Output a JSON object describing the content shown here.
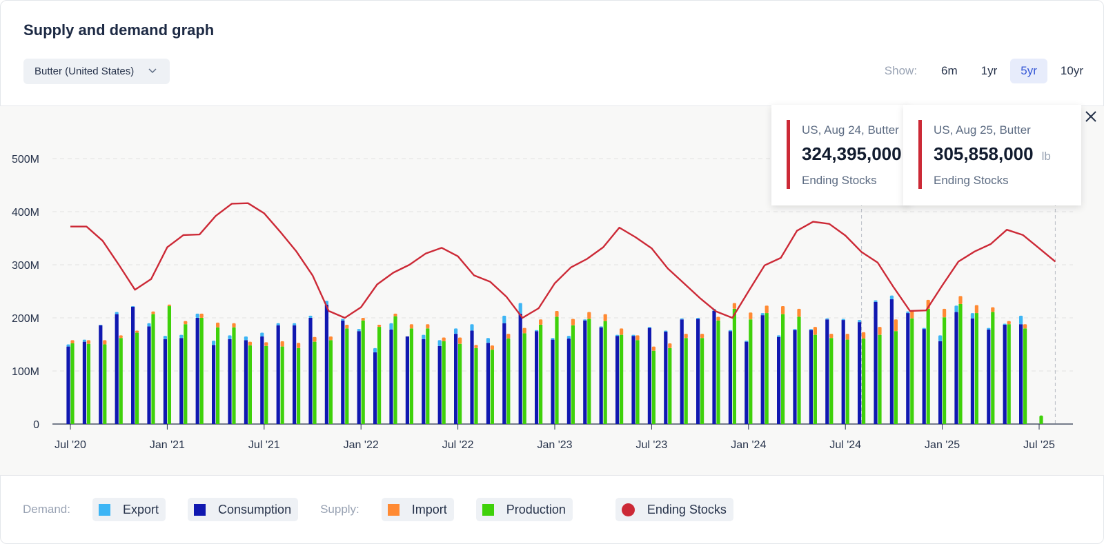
{
  "header": {
    "title": "Supply and demand graph",
    "dropdown_label": "Butter (United States)",
    "show_label": "Show:",
    "ranges": [
      "6m",
      "1yr",
      "5yr",
      "10yr"
    ],
    "active_range": "5yr"
  },
  "tooltips": [
    {
      "head": "US, Aug 24, Butter",
      "value": "324,395,000",
      "unit": "",
      "sub": "Ending Stocks"
    },
    {
      "head": "US, Aug 25, Butter",
      "value": "305,858,000",
      "unit": "lb",
      "sub": "Ending Stocks"
    }
  ],
  "legend": {
    "demand_label": "Demand:",
    "supply_label": "Supply:",
    "items": [
      {
        "name": "Export",
        "color": "#3db5f5"
      },
      {
        "name": "Consumption",
        "color": "#1018b0"
      },
      {
        "name": "Import",
        "color": "#ff8a33"
      },
      {
        "name": "Production",
        "color": "#3fd10a"
      },
      {
        "name": "Ending Stocks",
        "color": "#cc2936"
      }
    ]
  },
  "colors": {
    "export": "#3db5f5",
    "consumption": "#1018b0",
    "import": "#ff8a33",
    "production": "#3fd10a",
    "ending_stocks": "#cc2936"
  },
  "chart_data": {
    "type": "bar",
    "x_tick_labels": [
      "Jul '20",
      "Jan '21",
      "Jul '21",
      "Jan '22",
      "Jul '22",
      "Jan '23",
      "Jul '23",
      "Jan '24",
      "Jul '24",
      "Jan '25",
      "Jul '25"
    ],
    "y_tick_labels": [
      "0",
      "100M",
      "200M",
      "300M",
      "400M",
      "500M"
    ],
    "ylim": [
      0,
      500000000
    ],
    "unit": "lb",
    "months": [
      "Jul '20",
      "Aug '20",
      "Sep '20",
      "Oct '20",
      "Nov '20",
      "Dec '20",
      "Jan '21",
      "Feb '21",
      "Mar '21",
      "Apr '21",
      "May '21",
      "Jun '21",
      "Jul '21",
      "Aug '21",
      "Sep '21",
      "Oct '21",
      "Nov '21",
      "Dec '21",
      "Jan '22",
      "Feb '22",
      "Mar '22",
      "Apr '22",
      "May '22",
      "Jun '22",
      "Jul '22",
      "Aug '22",
      "Sep '22",
      "Oct '22",
      "Nov '22",
      "Dec '22",
      "Jan '23",
      "Feb '23",
      "Mar '23",
      "Apr '23",
      "May '23",
      "Jun '23",
      "Jul '23",
      "Aug '23",
      "Sep '23",
      "Oct '23",
      "Nov '23",
      "Dec '23",
      "Jan '24",
      "Feb '24",
      "Mar '24",
      "Apr '24",
      "May '24",
      "Jun '24",
      "Jul '24",
      "Aug '24",
      "Sep '24",
      "Oct '24",
      "Nov '24",
      "Dec '24",
      "Jan '25",
      "Feb '25",
      "Mar '25",
      "Apr '25",
      "May '25",
      "Jun '25",
      "Jul '25",
      "Aug '25"
    ],
    "series": [
      {
        "name": "Consumption",
        "type": "bar",
        "values": [
          146,
          155,
          186,
          207,
          221,
          184,
          160,
          162,
          200,
          149,
          160,
          158,
          165,
          186,
          186,
          200,
          225,
          195,
          175,
          135,
          178,
          165,
          160,
          147,
          170,
          176,
          153,
          190,
          208,
          175,
          159,
          161,
          195,
          182,
          166,
          166,
          181,
          174,
          197,
          198,
          213,
          175,
          155,
          205,
          164,
          177,
          177,
          197,
          196,
          192,
          230,
          235,
          209,
          179,
          156,
          211,
          199,
          178,
          187,
          188,
          0,
          0
        ]
      },
      {
        "name": "Export",
        "type": "bar",
        "values": [
          4,
          4,
          1,
          4,
          1,
          6,
          6,
          6,
          8,
          8,
          7,
          7,
          7,
          4,
          4,
          4,
          7,
          3,
          4,
          8,
          12,
          0,
          8,
          11,
          10,
          12,
          9,
          14,
          20,
          2,
          3,
          5,
          2,
          2,
          2,
          2,
          2,
          2,
          2,
          2,
          4,
          2,
          2,
          4,
          3,
          2,
          2,
          2,
          2,
          4,
          3,
          7,
          3,
          2,
          11,
          12,
          10,
          3,
          2,
          16,
          0,
          0
        ]
      },
      {
        "name": "Production",
        "type": "bar",
        "values": [
          152,
          151,
          150,
          162,
          172,
          207,
          222,
          188,
          200,
          182,
          182,
          148,
          147,
          146,
          143,
          155,
          158,
          180,
          195,
          183,
          203,
          180,
          180,
          156,
          151,
          143,
          140,
          161,
          171,
          187,
          202,
          186,
          198,
          194,
          168,
          158,
          138,
          143,
          162,
          162,
          195,
          217,
          197,
          209,
          207,
          202,
          168,
          162,
          159,
          161,
          168,
          175,
          199,
          217,
          201,
          226,
          209,
          211,
          188,
          180,
          16,
          0
        ]
      },
      {
        "name": "Import",
        "type": "bar",
        "values": [
          6,
          7,
          8,
          5,
          4,
          5,
          3,
          6,
          8,
          9,
          8,
          7,
          7,
          10,
          10,
          9,
          7,
          7,
          5,
          4,
          5,
          8,
          8,
          7,
          12,
          6,
          8,
          9,
          10,
          10,
          11,
          12,
          13,
          13,
          12,
          9,
          8,
          9,
          8,
          8,
          7,
          11,
          13,
          14,
          15,
          15,
          15,
          8,
          11,
          12,
          15,
          22,
          15,
          17,
          16,
          15,
          15,
          9,
          6,
          8,
          0,
          0
        ]
      },
      {
        "name": "Ending Stocks",
        "type": "line",
        "values": [
          372,
          372,
          345,
          300,
          253,
          273,
          333,
          356,
          357,
          392,
          415,
          416,
          397,
          362,
          325,
          280,
          213,
          200,
          220,
          263,
          285,
          300,
          321,
          332,
          316,
          280,
          268,
          240,
          200,
          218,
          265,
          295,
          311,
          333,
          370,
          352,
          331,
          293,
          265,
          237,
          212,
          200,
          250,
          299,
          313,
          364,
          381,
          377,
          355,
          324,
          304,
          257,
          213,
          214,
          261,
          306,
          325,
          339,
          366,
          356,
          331,
          306
        ]
      }
    ],
    "series_units": "million lb",
    "stacking": "side-by-side bars: Consumption+Export stacked, Production+Import stacked"
  }
}
